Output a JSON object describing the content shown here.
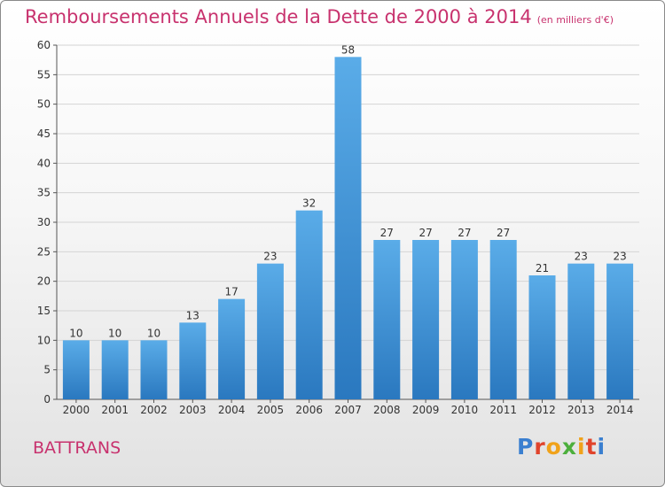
{
  "title": "Remboursements Annuels de la Dette de 2000 à 2014",
  "subtitle": "(en milliers d'€)",
  "place": "BATTRANS",
  "logo": "Proxiti",
  "colors": {
    "title": "#c8326e",
    "bar_light": "#5aace8",
    "bar_dark": "#2a78bf"
  },
  "chart_data": {
    "type": "bar",
    "categories": [
      "2000",
      "2001",
      "2002",
      "2003",
      "2004",
      "2005",
      "2006",
      "2007",
      "2008",
      "2009",
      "2010",
      "2011",
      "2012",
      "2013",
      "2014"
    ],
    "values": [
      10,
      10,
      10,
      13,
      17,
      23,
      32,
      58,
      27,
      27,
      27,
      27,
      21,
      23,
      23
    ],
    "ylim": [
      0,
      60
    ],
    "yticks": [
      0,
      5,
      10,
      15,
      20,
      25,
      30,
      35,
      40,
      45,
      50,
      55,
      60
    ],
    "grid": true,
    "xlabel": "",
    "ylabel": ""
  }
}
